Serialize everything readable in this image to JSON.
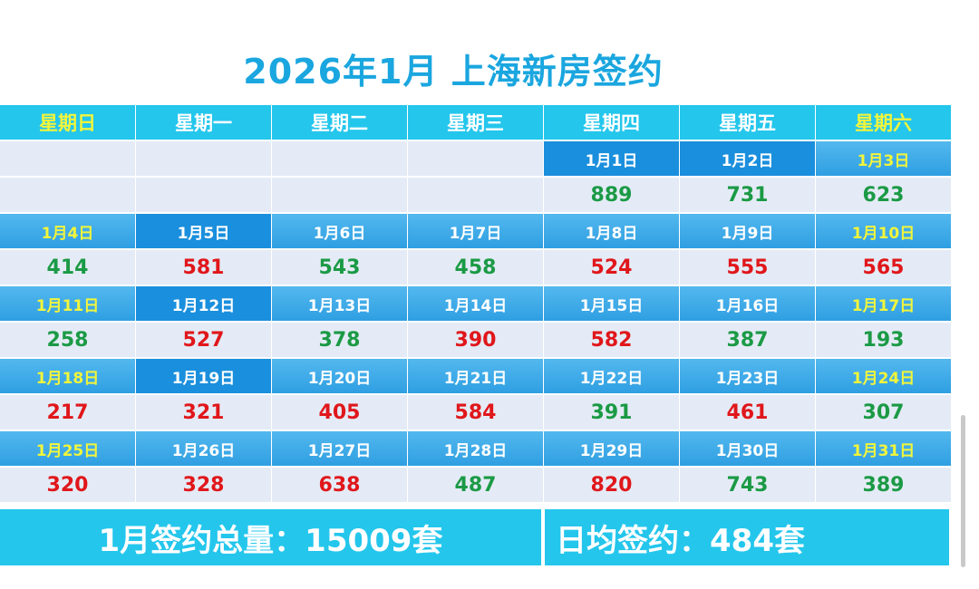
{
  "title": "2026年1月 上海新房签约",
  "weekdays": [
    "星期日",
    "星期一",
    "星期二",
    "星期三",
    "星期四",
    "星期五",
    "星期六"
  ],
  "weeks": [
    {
      "dates": [
        "",
        "",
        "",
        "",
        "1月1日",
        "1月2日",
        "1月3日"
      ],
      "values": [
        "",
        "",
        "",
        "",
        "889",
        "731",
        "623"
      ],
      "colors": [
        "",
        "",
        "",
        "",
        "green",
        "green",
        "green"
      ]
    },
    {
      "dates": [
        "1月4日",
        "1月5日",
        "1月6日",
        "1月7日",
        "1月8日",
        "1月9日",
        "1月10日"
      ],
      "values": [
        "414",
        "581",
        "543",
        "458",
        "524",
        "555",
        "565"
      ],
      "colors": [
        "green",
        "red",
        "green",
        "green",
        "red",
        "red",
        "red"
      ]
    },
    {
      "dates": [
        "1月11日",
        "1月12日",
        "1月13日",
        "1月14日",
        "1月15日",
        "1月16日",
        "1月17日"
      ],
      "values": [
        "258",
        "527",
        "378",
        "390",
        "582",
        "387",
        "193"
      ],
      "colors": [
        "green",
        "red",
        "green",
        "red",
        "red",
        "green",
        "green"
      ]
    },
    {
      "dates": [
        "1月18日",
        "1月19日",
        "1月20日",
        "1月21日",
        "1月22日",
        "1月23日",
        "1月24日"
      ],
      "values": [
        "217",
        "321",
        "405",
        "584",
        "391",
        "461",
        "307"
      ],
      "colors": [
        "red",
        "red",
        "red",
        "red",
        "green",
        "red",
        "green"
      ]
    },
    {
      "dates": [
        "1月25日",
        "1月26日",
        "1月27日",
        "1月28日",
        "1月29日",
        "1月30日",
        "1月31日"
      ],
      "values": [
        "320",
        "328",
        "638",
        "487",
        "820",
        "743",
        "389"
      ],
      "colors": [
        "red",
        "red",
        "red",
        "green",
        "red",
        "green",
        "green"
      ]
    }
  ],
  "summary": {
    "total": "1月签约总量：15009套",
    "daily_avg": "日均签约：484套"
  },
  "colors": {
    "title": "#1aa6df",
    "header_bg": "#24c6ec",
    "weekend_text": "#f2f53b",
    "date_bg": "#3aa9e8",
    "value_bg": "#e4ebf6",
    "rise": "#1b9a45",
    "fall": "#e0171b"
  }
}
